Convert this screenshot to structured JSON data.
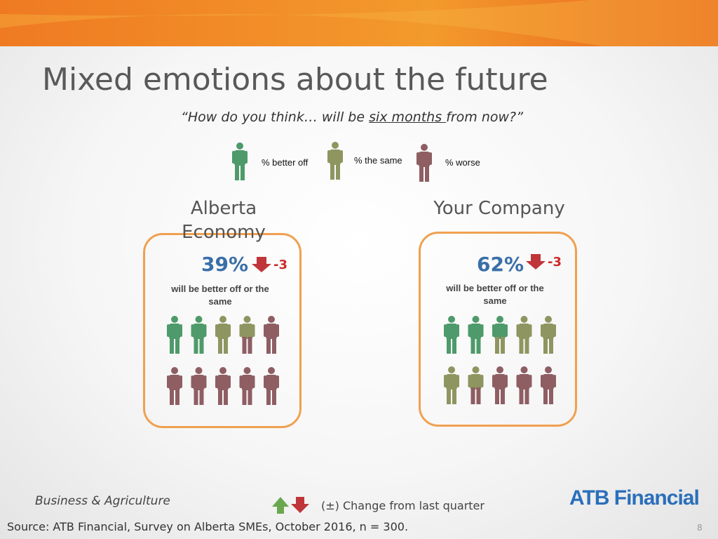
{
  "header": {
    "title": "Mixed emotions about the future"
  },
  "subtitle": {
    "before": "“How do you think… will be ",
    "underlined": "six months ",
    "after": "from now?”"
  },
  "legend": [
    "% better off",
    "% the same",
    "% worse"
  ],
  "panels": [
    {
      "title": "Alberta Economy",
      "percent": "39%",
      "change": "-3",
      "caption": "will be better off or the same"
    },
    {
      "title": "Your Company",
      "percent": "62%",
      "change": "-3",
      "caption": "will be better off or the same"
    }
  ],
  "footer": {
    "segment": "Business & Agriculture",
    "change_note": "(±) Change from last quarter",
    "source": "Source:  ATB Financial, Survey on Alberta SMEs, October 2016, n = 300.",
    "page": "8",
    "logo": "ATB Financial"
  }
}
